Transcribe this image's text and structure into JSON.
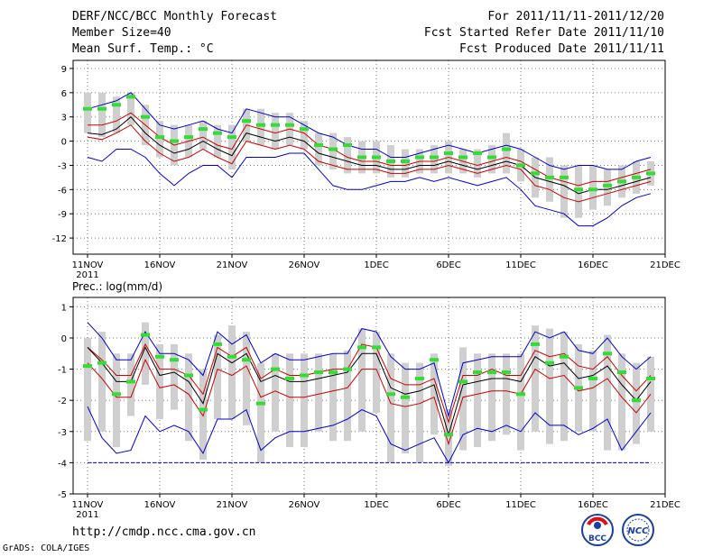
{
  "header": {
    "title": "DERF/NCC/BCC Monthly Forecast",
    "member_size": "Member Size=40",
    "variable": "Mean Surf. Temp.: °C",
    "period": "For 2011/11/11-2011/12/20",
    "fcst_started": "Fcst Started Refer Date 2011/11/10",
    "fcst_produced": "Fcst Produced Date 2011/11/11"
  },
  "footer": {
    "url": "http://cmdp.ncc.cma.gov.cn",
    "grads": "GrADS: COLA/IGES",
    "logo_bcc": "BCC",
    "logo_ncc": "NCC"
  },
  "colors": {
    "mean": "#000000",
    "member_band": "#cc0000",
    "envelope": "#0000cc",
    "observed": "#33dd33",
    "box": "#cfcfcf",
    "grid": "#777777"
  },
  "chart_data": [
    {
      "type": "line",
      "title": "Mean Surf. Temp.: °C",
      "ylim": [
        -14,
        10
      ],
      "yticks": [
        -12,
        -9,
        -6,
        -3,
        0,
        3,
        6,
        9
      ],
      "x": [
        1,
        2,
        3,
        4,
        5,
        6,
        7,
        8,
        9,
        10,
        11,
        12,
        13,
        14,
        15,
        16,
        17,
        18,
        19,
        20,
        21,
        22,
        23,
        24,
        25,
        26,
        27,
        28,
        29,
        30,
        31,
        32,
        33,
        34,
        35,
        36,
        37,
        38,
        39,
        40
      ],
      "xlim": [
        0,
        41
      ],
      "xtick_positions": [
        1,
        6,
        11,
        16,
        21,
        26,
        31,
        36,
        41
      ],
      "xtick_labels": [
        "11NOV",
        "16NOV",
        "21NOV",
        "26NOV",
        "1DEC",
        "6DEC",
        "11DEC",
        "16DEC",
        "21DEC"
      ],
      "year_label": "2011",
      "series": [
        {
          "name": "ensemble-max",
          "values": [
            4,
            4.5,
            5,
            6,
            4,
            2,
            1.5,
            2,
            2.5,
            1.5,
            1,
            4,
            3.5,
            3,
            3,
            2,
            1,
            0.5,
            -0.5,
            -1,
            -1,
            -2,
            -2,
            -1.5,
            -1,
            -0.5,
            -1,
            -1.5,
            -1,
            -0.5,
            -1,
            -2,
            -3,
            -3.5,
            -3,
            -3,
            -3.5,
            -3.5,
            -2.5,
            -2
          ]
        },
        {
          "name": "upper-member",
          "values": [
            2,
            2,
            2.5,
            3.5,
            2,
            0.5,
            -0.5,
            0,
            0.5,
            -0.5,
            -1,
            2,
            1.5,
            1,
            1.5,
            1,
            -0.5,
            -1,
            -2,
            -2.5,
            -2.5,
            -3,
            -3,
            -2.5,
            -2.5,
            -2,
            -2.5,
            -3,
            -2.5,
            -2,
            -2.5,
            -3.5,
            -4.5,
            -5,
            -5.5,
            -5,
            -5,
            -4.5,
            -4,
            -3.5
          ]
        },
        {
          "name": "ensemble-mean",
          "values": [
            1,
            0.8,
            1.5,
            3,
            1,
            -0.5,
            -1.5,
            -1,
            0,
            -1,
            -1.8,
            1,
            0.5,
            0,
            0.5,
            0,
            -1.5,
            -2,
            -2.5,
            -3,
            -3,
            -3.5,
            -3.5,
            -3,
            -3,
            -2.5,
            -3,
            -3.5,
            -3,
            -2.5,
            -3,
            -4.5,
            -5,
            -5.5,
            -6.5,
            -6,
            -6,
            -5.5,
            -5,
            -4.5
          ]
        },
        {
          "name": "lower-member",
          "values": [
            0.5,
            0.2,
            1,
            2,
            0,
            -1.5,
            -2.5,
            -2,
            -1,
            -2,
            -2.8,
            0,
            -0.5,
            -1,
            -0.5,
            -1,
            -2.5,
            -3,
            -3.5,
            -3.5,
            -3.5,
            -4,
            -4,
            -3.5,
            -3.5,
            -3,
            -3.5,
            -4,
            -3.5,
            -3,
            -3.5,
            -5.5,
            -6,
            -7,
            -7.5,
            -7,
            -6.5,
            -6,
            -5.5,
            -5
          ]
        },
        {
          "name": "ensemble-min",
          "values": [
            -2,
            -2.5,
            -1,
            -1,
            -2,
            -4,
            -5.5,
            -4,
            -3,
            -3,
            -4.5,
            -2,
            -2,
            -2,
            -1.5,
            -1.5,
            -3.5,
            -5.5,
            -6,
            -6,
            -5.5,
            -5,
            -5,
            -4.5,
            -5,
            -4.5,
            -5,
            -5.5,
            -5,
            -4.5,
            -6,
            -8,
            -8.5,
            -9,
            -10.5,
            -10.5,
            -9.5,
            -8,
            -7,
            -6.5
          ]
        },
        {
          "name": "observed",
          "values": [
            4,
            4,
            4.5,
            5.5,
            3,
            0.5,
            0,
            0.5,
            1.5,
            1,
            0.5,
            2.5,
            2,
            2,
            2,
            1.5,
            -0.5,
            -1,
            -0.5,
            -2,
            -2,
            -2.5,
            -2.5,
            -2,
            -2,
            -1.5,
            -2,
            -1.5,
            -2,
            -1,
            -3,
            -4,
            -4.5,
            -4.5,
            -6,
            -6,
            -5.5,
            -5,
            -4.5,
            -4
          ]
        },
        {
          "name": "box-top",
          "values": [
            6,
            6,
            5.5,
            6,
            4.5,
            2.5,
            2,
            2,
            2.5,
            2,
            2,
            4,
            4,
            3.5,
            3.5,
            2.5,
            1,
            1,
            0.5,
            0,
            0,
            -0.5,
            -1,
            -1,
            -0.5,
            0,
            -1,
            -1,
            -0.5,
            1,
            -1,
            -2,
            -2,
            -3,
            -3,
            -3,
            -3.5,
            -3,
            -2.5,
            -2.5
          ]
        },
        {
          "name": "box-bottom",
          "values": [
            1,
            0.5,
            1,
            2,
            -0.5,
            -2,
            -3,
            -2,
            -1,
            -2,
            -3.5,
            0,
            -0.5,
            -1,
            -0.5,
            -1,
            -3,
            -3.5,
            -4,
            -4,
            -4,
            -4.5,
            -4.5,
            -4,
            -4,
            -4,
            -4,
            -4.5,
            -4,
            -4,
            -5,
            -7,
            -7.5,
            -9.5,
            -9.5,
            -8.5,
            -8,
            -7,
            -6.5,
            -5.5
          ]
        }
      ]
    },
    {
      "type": "line",
      "title": "Prec.: log(mm/d)",
      "ylim": [
        -5,
        1.3
      ],
      "yticks": [
        -5,
        -4,
        -3,
        -2,
        -1,
        0,
        1
      ],
      "x": [
        1,
        2,
        3,
        4,
        5,
        6,
        7,
        8,
        9,
        10,
        11,
        12,
        13,
        14,
        15,
        16,
        17,
        18,
        19,
        20,
        21,
        22,
        23,
        24,
        25,
        26,
        27,
        28,
        29,
        30,
        31,
        32,
        33,
        34,
        35,
        36,
        37,
        38,
        39,
        40
      ],
      "xlim": [
        0,
        41
      ],
      "xtick_positions": [
        1,
        6,
        11,
        16,
        21,
        26,
        31,
        36,
        41
      ],
      "xtick_labels": [
        "11NOV",
        "16NOV",
        "21NOV",
        "26NOV",
        "1DEC",
        "6DEC",
        "11DEC",
        "16DEC",
        "21DEC"
      ],
      "year_label": "2011",
      "missing_value_line": -4,
      "series": [
        {
          "name": "ensemble-max",
          "values": [
            0.5,
            0,
            -0.7,
            -0.7,
            0.2,
            -0.5,
            -0.5,
            -0.7,
            -1.2,
            0.2,
            -0.2,
            0.1,
            -0.8,
            -0.5,
            -0.7,
            -0.7,
            -0.6,
            -0.5,
            -0.5,
            0.3,
            0.2,
            -0.6,
            -1,
            -1,
            -0.8,
            -2.5,
            -0.8,
            -0.7,
            -0.6,
            -0.6,
            -0.6,
            0.2,
            0,
            0.2,
            -0.4,
            -0.5,
            0,
            -0.6,
            -1,
            -0.6
          ]
        },
        {
          "name": "upper-member",
          "values": [
            -0.3,
            -0.7,
            -1.2,
            -1.2,
            -0.2,
            -1,
            -1,
            -1.2,
            -1.8,
            -0.3,
            -0.6,
            -0.3,
            -1.3,
            -1,
            -1.2,
            -1.2,
            -1.1,
            -1,
            -1,
            -0.2,
            -0.3,
            -1.3,
            -1.5,
            -1.5,
            -1.3,
            -2.7,
            -1.2,
            -1.2,
            -1,
            -1.2,
            -1.2,
            -0.4,
            -0.6,
            -0.5,
            -0.9,
            -1,
            -0.6,
            -1.2,
            -1.7,
            -1.2
          ]
        },
        {
          "name": "ensemble-mean",
          "values": [
            -0.3,
            -0.8,
            -1.4,
            -1.4,
            -0.3,
            -1.2,
            -1.1,
            -1.4,
            -2.1,
            -0.5,
            -0.8,
            -0.5,
            -1.4,
            -1.2,
            -1.4,
            -1.4,
            -1.3,
            -1.2,
            -1.1,
            -0.5,
            -0.5,
            -1.6,
            -1.8,
            -1.7,
            -1.5,
            -3.1,
            -1.5,
            -1.4,
            -1.3,
            -1.3,
            -1.4,
            -0.6,
            -0.9,
            -0.8,
            -1.3,
            -1.2,
            -0.9,
            -1.5,
            -2,
            -1.4
          ]
        },
        {
          "name": "lower-member",
          "values": [
            -0.8,
            -1.3,
            -1.9,
            -1.9,
            -0.7,
            -1.6,
            -1.5,
            -1.8,
            -2.5,
            -1,
            -1.2,
            -0.9,
            -1.9,
            -1.7,
            -1.9,
            -1.9,
            -1.8,
            -1.7,
            -1.6,
            -1,
            -1,
            -2.1,
            -2.2,
            -2.1,
            -1.9,
            -3.4,
            -1.9,
            -1.8,
            -1.7,
            -1.7,
            -1.8,
            -1,
            -1.3,
            -1.2,
            -1.7,
            -1.6,
            -1.3,
            -1.9,
            -2.4,
            -1.8
          ]
        },
        {
          "name": "ensemble-min",
          "values": [
            -2.2,
            -3.2,
            -3.7,
            -3.6,
            -2.5,
            -3,
            -2.8,
            -3,
            -3.7,
            -2.6,
            -2.6,
            -2.3,
            -3.6,
            -3.2,
            -3,
            -3,
            -2.9,
            -2.8,
            -2.6,
            -2.3,
            -2.5,
            -3.4,
            -3.6,
            -3.4,
            -3.2,
            -4,
            -3.1,
            -2.9,
            -3,
            -2.8,
            -3,
            -2.4,
            -2.8,
            -2.8,
            -3.1,
            -2.9,
            -2.6,
            -3.6,
            -3,
            -2.4
          ]
        },
        {
          "name": "observed",
          "values": [
            -0.9,
            -0.8,
            -1.8,
            -1.4,
            0.1,
            -0.6,
            -0.7,
            -1.2,
            -2.3,
            -0.2,
            -0.6,
            -0.7,
            -2.1,
            -1,
            -1.3,
            -1.2,
            -1.1,
            -1.1,
            -1,
            -0.3,
            -0.3,
            -1.8,
            -1.9,
            -1.3,
            -0.7,
            -3.1,
            -1.4,
            -1.1,
            -1.1,
            -1.1,
            -1.8,
            -0.2,
            -0.8,
            -0.6,
            -1.6,
            -1.3,
            -0.5,
            -1.1,
            -2,
            -1.3
          ]
        },
        {
          "name": "box-top",
          "values": [
            0,
            0.2,
            -0.5,
            -0.5,
            0.5,
            -0.2,
            -0.2,
            -0.5,
            -1,
            0.1,
            0.4,
            0.2,
            -0.8,
            -0.5,
            -0.5,
            -0.5,
            -0.5,
            -0.5,
            -0.4,
            0.3,
            0.2,
            -0.5,
            -0.8,
            -0.8,
            -0.5,
            -2.3,
            -0.3,
            -0.5,
            -0.5,
            -0.5,
            -0.5,
            0.4,
            0.3,
            0.2,
            -0.2,
            -0.4,
            0.1,
            -0.5,
            -0.8,
            -0.6
          ]
        },
        {
          "name": "box-bottom",
          "values": [
            -3.3,
            -3,
            -3.5,
            -2.5,
            -1.5,
            -2.6,
            -2.3,
            -3.3,
            -3.9,
            -2.6,
            -2.6,
            -2.8,
            -4,
            -3,
            -3.5,
            -3.5,
            -3,
            -3.3,
            -3.3,
            -3,
            -2.4,
            -4,
            -3.7,
            -4,
            -3.1,
            -4.1,
            -3.6,
            -3.5,
            -3.3,
            -3.1,
            -3.6,
            -3,
            -3.4,
            -3.3,
            -3,
            -3,
            -3.6,
            -3.6,
            -3.4,
            -3
          ]
        }
      ]
    }
  ]
}
